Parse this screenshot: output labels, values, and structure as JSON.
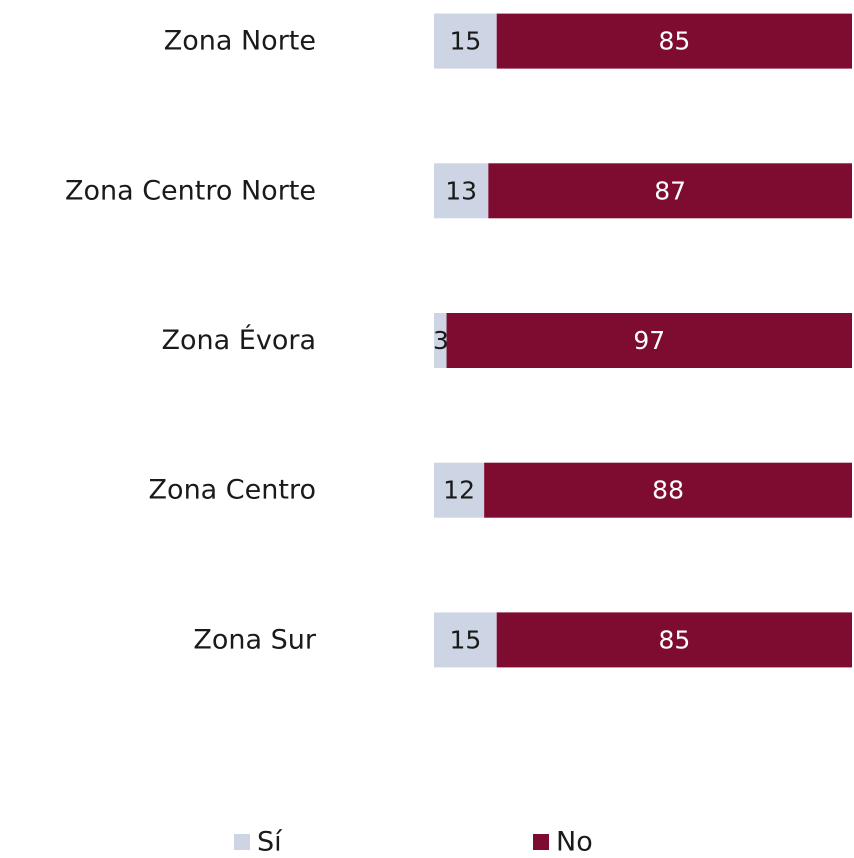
{
  "chart_data": {
    "type": "stacked-bar-horizontal",
    "categories": [
      "Zona Norte",
      "Zona Centro Norte",
      "Zona Évora",
      "Zona Centro",
      "Zona Sur"
    ],
    "series": [
      {
        "name": "Sí",
        "color": "#cdd5e4",
        "values": [
          15,
          13,
          3,
          12,
          15
        ]
      },
      {
        "name": "No",
        "color": "#7d0c30",
        "values": [
          85,
          87,
          97,
          88,
          85
        ]
      }
    ],
    "xlim": [
      0,
      100
    ],
    "legend": "bottom"
  }
}
